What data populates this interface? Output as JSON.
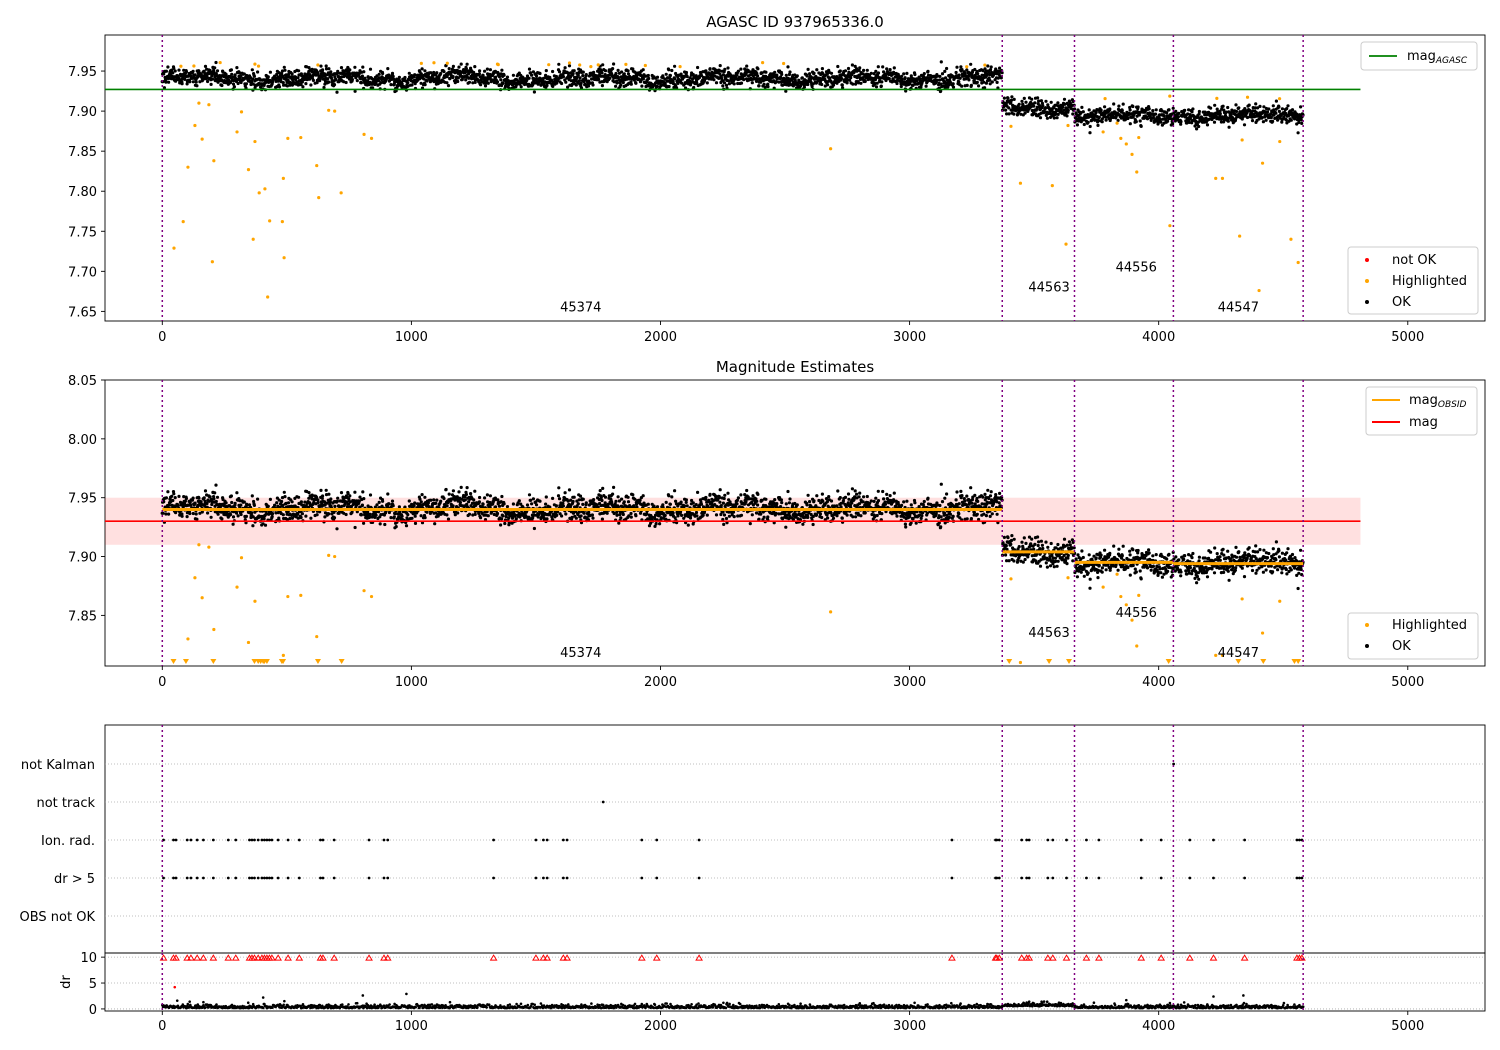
{
  "chart_data": [
    {
      "type": "scatter",
      "title": "AGASC ID 937965336.0",
      "xlim": [
        -230,
        5310
      ],
      "ylim": [
        7.638,
        7.995
      ],
      "xticks": [
        0,
        1000,
        2000,
        3000,
        4000,
        5000
      ],
      "yticks": [
        7.65,
        7.7,
        7.75,
        7.8,
        7.85,
        7.9,
        7.95
      ],
      "obsid_boundaries": [
        0,
        3372,
        3662,
        4059,
        4580
      ],
      "obsid_labels": [
        {
          "text": "45374",
          "x": 1680,
          "y": 7.655
        },
        {
          "text": "44563",
          "x": 3560,
          "y": 7.68
        },
        {
          "text": "44556",
          "x": 3910,
          "y": 7.705
        },
        {
          "text": "44547",
          "x": 4320,
          "y": 7.655
        }
      ],
      "series": [
        {
          "name": "magAGASC",
          "kind": "hline",
          "color": "#008000",
          "y": 7.927,
          "x_range": [
            -230,
            4810
          ]
        },
        {
          "name": "not OK",
          "color": "#ff0000",
          "values": []
        },
        {
          "name": "Highlighted",
          "color": "#ffa500",
          "segment_levels": [
            7.941,
            7.905,
            7.894,
            7.894
          ],
          "outliers": [
            [
              47,
              7.729
            ],
            [
              84,
              7.762
            ],
            [
              103,
              7.83
            ],
            [
              131,
              7.882
            ],
            [
              147,
              7.91
            ],
            [
              160,
              7.865
            ],
            [
              187,
              7.908
            ],
            [
              201,
              7.712
            ],
            [
              207,
              7.838
            ],
            [
              300,
              7.874
            ],
            [
              318,
              7.899
            ],
            [
              346,
              7.827
            ],
            [
              365,
              7.74
            ],
            [
              372,
              7.862
            ],
            [
              389,
              7.798
            ],
            [
              412,
              7.803
            ],
            [
              423,
              7.668
            ],
            [
              431,
              7.763
            ],
            [
              482,
              7.762
            ],
            [
              486,
              7.816
            ],
            [
              489,
              7.717
            ],
            [
              504,
              7.866
            ],
            [
              556,
              7.867
            ],
            [
              620,
              7.832
            ],
            [
              628,
              7.792
            ],
            [
              668,
              7.901
            ],
            [
              692,
              7.9
            ],
            [
              718,
              7.798
            ],
            [
              810,
              7.871
            ],
            [
              840,
              7.866
            ],
            [
              2683,
              7.853
            ],
            [
              3407,
              7.881
            ],
            [
              3445,
              7.81
            ],
            [
              3573,
              7.807
            ],
            [
              3636,
              7.882
            ],
            [
              3628,
              7.734
            ],
            [
              3777,
              7.874
            ],
            [
              3833,
              7.885
            ],
            [
              3848,
              7.866
            ],
            [
              3870,
              7.859
            ],
            [
              3893,
              7.846
            ],
            [
              3912,
              7.824
            ],
            [
              3920,
              7.867
            ],
            [
              4045,
              7.757
            ],
            [
              4229,
              7.816
            ],
            [
              4256,
              7.816
            ],
            [
              4325,
              7.744
            ],
            [
              4335,
              7.864
            ],
            [
              4403,
              7.676
            ],
            [
              4417,
              7.835
            ],
            [
              4486,
              7.862
            ],
            [
              4531,
              7.74
            ],
            [
              4560,
              7.711
            ]
          ]
        },
        {
          "name": "OK",
          "color": "#000000"
        }
      ],
      "legends": {
        "top_right": [
          {
            "label": "mag",
            "sub": "AGASC",
            "color": "#008000",
            "kind": "line"
          }
        ],
        "bottom_right": [
          {
            "label": "not OK",
            "color": "#ff0000",
            "kind": "dot"
          },
          {
            "label": "Highlighted",
            "color": "#ffa500",
            "kind": "dot"
          },
          {
            "label": "OK",
            "color": "#000000",
            "kind": "dot"
          }
        ]
      }
    },
    {
      "type": "scatter",
      "title": "Magnitude Estimates",
      "xlim": [
        -230,
        5310
      ],
      "ylim": [
        7.807,
        8.05
      ],
      "xticks": [
        0,
        1000,
        2000,
        3000,
        4000,
        5000
      ],
      "yticks": [
        7.85,
        7.9,
        7.95,
        8.0,
        8.05
      ],
      "obsid_boundaries": [
        0,
        3372,
        3662,
        4059,
        4580
      ],
      "obsid_labels": [
        {
          "text": "45374",
          "x": 1680,
          "y": 7.818
        },
        {
          "text": "44563",
          "x": 3560,
          "y": 7.835
        },
        {
          "text": "44556",
          "x": 3910,
          "y": 7.852
        },
        {
          "text": "44547",
          "x": 4320,
          "y": 7.818
        }
      ],
      "series": [
        {
          "name": "magOBSID",
          "kind": "steps",
          "color": "#ffa500",
          "steps": [
            [
              0,
              3372,
              7.94
            ],
            [
              3372,
              3662,
              7.904
            ],
            [
              3662,
              4059,
              7.895
            ],
            [
              4059,
              4580,
              7.894
            ]
          ]
        },
        {
          "name": "mag",
          "kind": "hline",
          "color": "#ff0000",
          "y": 7.93,
          "band": [
            7.91,
            7.95
          ],
          "x_range": [
            -230,
            4810
          ]
        },
        {
          "name": "Highlighted",
          "color": "#ffa500",
          "clipped_x": [
            45,
            95,
            205,
            370,
            385,
            395,
            405,
            410,
            420,
            480,
            485,
            625,
            720,
            3400,
            3560,
            3640,
            4040,
            4320,
            4420,
            4545,
            4560
          ]
        },
        {
          "name": "OK",
          "color": "#000000"
        }
      ],
      "legends": {
        "top_right": [
          {
            "label": "mag",
            "sub": "OBSID",
            "color": "#ffa500",
            "kind": "line"
          },
          {
            "label": "mag",
            "sub": "",
            "color": "#ff0000",
            "kind": "line"
          }
        ],
        "bottom_right": [
          {
            "label": "Highlighted",
            "color": "#ffa500",
            "kind": "dot"
          },
          {
            "label": "OK",
            "color": "#000000",
            "kind": "dot"
          }
        ]
      }
    },
    {
      "type": "scatter",
      "title": "",
      "xlim": [
        -230,
        5310
      ],
      "xticks": [
        0,
        1000,
        2000,
        3000,
        4000,
        5000
      ],
      "flag_categories": [
        "not Kalman",
        "not track",
        "Ion. rad.",
        "dr > 5",
        "OBS not OK"
      ],
      "flag_points": {
        "not Kalman": [
          4060
        ],
        "not track": [
          1770
        ],
        "Ion. rad.": [
          5,
          45,
          55,
          100,
          115,
          140,
          165,
          205,
          265,
          295,
          350,
          360,
          370,
          385,
          400,
          410,
          420,
          430,
          440,
          465,
          505,
          550,
          635,
          645,
          690,
          830,
          890,
          905,
          1330,
          1500,
          1530,
          1545,
          1610,
          1625,
          1925,
          1985,
          2155,
          3170,
          3345,
          3350,
          3360,
          3450,
          3470,
          3480,
          3555,
          3575,
          3630,
          3710,
          3760,
          3930,
          4010,
          4125,
          4220,
          4345,
          4555,
          4565,
          4575
        ],
        "dr > 5": [
          5,
          45,
          55,
          100,
          115,
          140,
          165,
          205,
          265,
          295,
          350,
          360,
          370,
          385,
          400,
          410,
          420,
          430,
          440,
          465,
          505,
          550,
          635,
          645,
          690,
          830,
          890,
          905,
          1330,
          1500,
          1530,
          1545,
          1610,
          1625,
          1925,
          1985,
          2155,
          3170,
          3345,
          3350,
          3360,
          3450,
          3470,
          3480,
          3555,
          3575,
          3630,
          3710,
          3760,
          3930,
          4010,
          4125,
          4220,
          4345,
          4555,
          4565,
          4575
        ]
      },
      "dr_panel": {
        "ylabel": "dr",
        "ylim": [
          -0.4,
          10.8
        ],
        "yticks": [
          0,
          5,
          10
        ],
        "clipped_color": "#ff0000",
        "clipped_y": 9.8
      }
    }
  ]
}
